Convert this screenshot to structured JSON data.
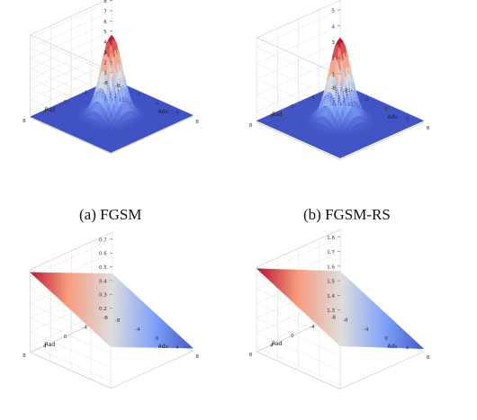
{
  "captions": {
    "a": "(a) FGSM",
    "b": "(b) FGSM-RS"
  },
  "chart_data": [
    {
      "type": "surface",
      "surface": "gaussian-peak",
      "x_axis": {
        "label": "Adv",
        "ticks": [
          "-8",
          "-4",
          "0",
          "4",
          "8"
        ],
        "range": [
          -8,
          8
        ]
      },
      "y_axis": {
        "label": "Rad",
        "ticks": [
          "-8",
          "-4",
          "0",
          "4",
          "8"
        ],
        "range": [
          -8,
          8
        ]
      },
      "z_axis": {
        "ticks": [
          "1",
          "2",
          "3",
          "4",
          "5",
          "6",
          "7",
          "8"
        ],
        "range": [
          0.2,
          8.3
        ]
      },
      "peak": {
        "x": 0,
        "y": 0,
        "z": 8.2
      },
      "floor": 0.3,
      "colormap": "coolwarm"
    },
    {
      "type": "surface",
      "surface": "gaussian-peak",
      "x_axis": {
        "label": "Adv",
        "ticks": [
          "-8",
          "-4",
          "0",
          "4",
          "8"
        ],
        "range": [
          -8,
          8
        ]
      },
      "y_axis": {
        "label": "Rad",
        "ticks": [
          "-8",
          "-4",
          "0",
          "4",
          "8"
        ],
        "range": [
          -8,
          8
        ]
      },
      "z_axis": {
        "ticks": [
          "1",
          "2",
          "3",
          "4",
          "5"
        ],
        "range": [
          0.3,
          5.6
        ]
      },
      "peak": {
        "x": 0,
        "y": 0,
        "z": 5.6
      },
      "floor": 0.4,
      "colormap": "coolwarm"
    },
    {
      "type": "surface",
      "surface": "inclined-plane",
      "x_axis": {
        "label": "Adv",
        "ticks": [
          "-8",
          "-4",
          "0",
          "4",
          "8"
        ],
        "range": [
          -8,
          8
        ]
      },
      "y_axis": {
        "label": "Rad",
        "ticks": [
          "-8",
          "-4",
          "0",
          "4",
          "8"
        ],
        "range": [
          -8,
          8
        ]
      },
      "z_axis": {
        "ticks": [
          "0.2",
          "0.3",
          "0.4",
          "0.5",
          "0.6",
          "0.7"
        ],
        "range": [
          0.15,
          0.75
        ]
      },
      "low": 0.17,
      "high": 0.73,
      "colormap": "coolwarm"
    },
    {
      "type": "surface",
      "surface": "inclined-plane",
      "x_axis": {
        "label": "Adv",
        "ticks": [
          "-8",
          "-4",
          "0",
          "4",
          "8"
        ],
        "range": [
          -8,
          8
        ]
      },
      "y_axis": {
        "label": "Rad",
        "ticks": [
          "-8",
          "-4",
          "0",
          "4",
          "8"
        ],
        "range": [
          -8,
          8
        ]
      },
      "z_axis": {
        "ticks": [
          "1.3",
          "1.4",
          "1.5",
          "1.6",
          "1.7",
          "1.8"
        ],
        "range": [
          1.27,
          1.85
        ]
      },
      "low": 1.29,
      "high": 1.84,
      "colormap": "coolwarm"
    }
  ]
}
